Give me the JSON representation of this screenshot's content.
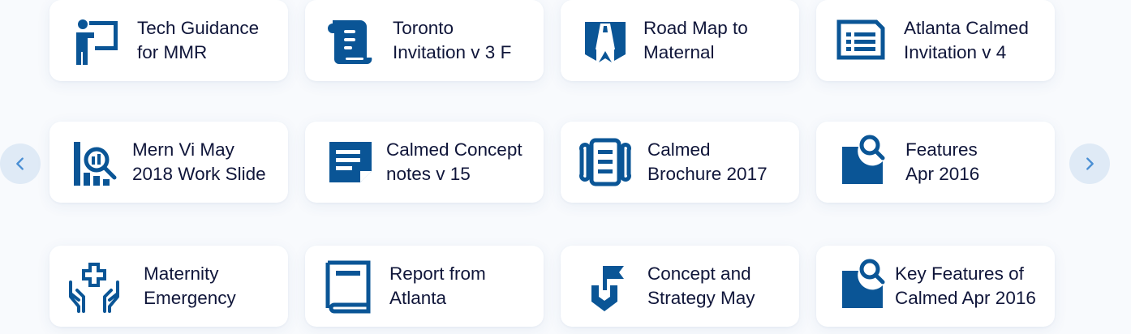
{
  "colors": {
    "icon": "#0a5596",
    "card_bg": "#ffffff",
    "page_bg": "#f8fafd",
    "text": "#10163a",
    "nav_bg": "#dfeaf6"
  },
  "nav": {
    "prev_icon": "chevron-left-icon",
    "next_icon": "chevron-right-icon"
  },
  "cards": [
    {
      "label": "Tech Guidance\n for MMR",
      "icon": "presenter-board-icon"
    },
    {
      "label": "Toronto\nInvitation v 3 F",
      "icon": "scroll-icon"
    },
    {
      "label": "Road Map to\nMaternal",
      "icon": "road-map-icon"
    },
    {
      "label": "Atlanta Calmed\nInvitation v 4",
      "icon": "document-list-icon"
    },
    {
      "label": "Mern Vi May\n2018 Work Slide",
      "icon": "analytics-search-icon"
    },
    {
      "label": "Calmed Concept\nnotes v 15",
      "icon": "note-icon"
    },
    {
      "label": "Calmed\nBrochure 2017",
      "icon": "brochure-icon"
    },
    {
      "label": "Features\nApr 2016",
      "icon": "document-search-icon"
    },
    {
      "label": "Maternity\nEmergency",
      "icon": "medical-hands-icon"
    },
    {
      "label": " Report from\nAtlanta",
      "icon": "book-icon"
    },
    {
      "label": "Concept and\nStrategy May",
      "icon": "flag-icon"
    },
    {
      "label": "Key Features of\nCalmed Apr 2016",
      "icon": "document-search-icon"
    }
  ]
}
